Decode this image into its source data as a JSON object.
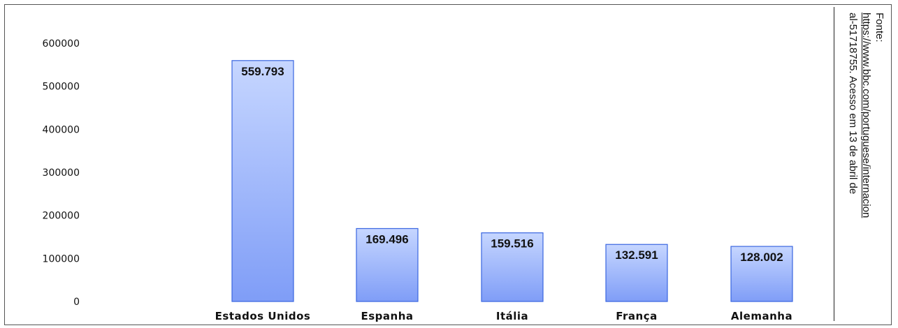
{
  "chart_data": {
    "type": "bar",
    "title": "",
    "xlabel": "",
    "ylabel": "",
    "categories": [
      "Estados Unidos",
      "Espanha",
      "Itália",
      "França",
      "Alemanha"
    ],
    "values": [
      559793,
      169496,
      159516,
      132591,
      128002
    ],
    "value_labels": [
      "559.793",
      "169.496",
      "159.516",
      "132.591",
      "128.002"
    ],
    "ylim": [
      0,
      600000
    ],
    "yticks": [
      0,
      100000,
      200000,
      300000,
      400000,
      500000,
      600000
    ],
    "ytick_labels": [
      "0",
      "100000",
      "200000",
      "300000",
      "400000",
      "500000",
      "600000"
    ],
    "grid": false,
    "legend": "none",
    "bar_color_top": "#c6d6ff",
    "bar_color_bottom": "#7f9df7",
    "bar_border": "#3a66e0"
  },
  "source": {
    "line1": "Fonte:",
    "link": "https://www.bbc.com/portuguese/internacion",
    "line3": "al-51718755. Acesso em 13 de abril de"
  }
}
